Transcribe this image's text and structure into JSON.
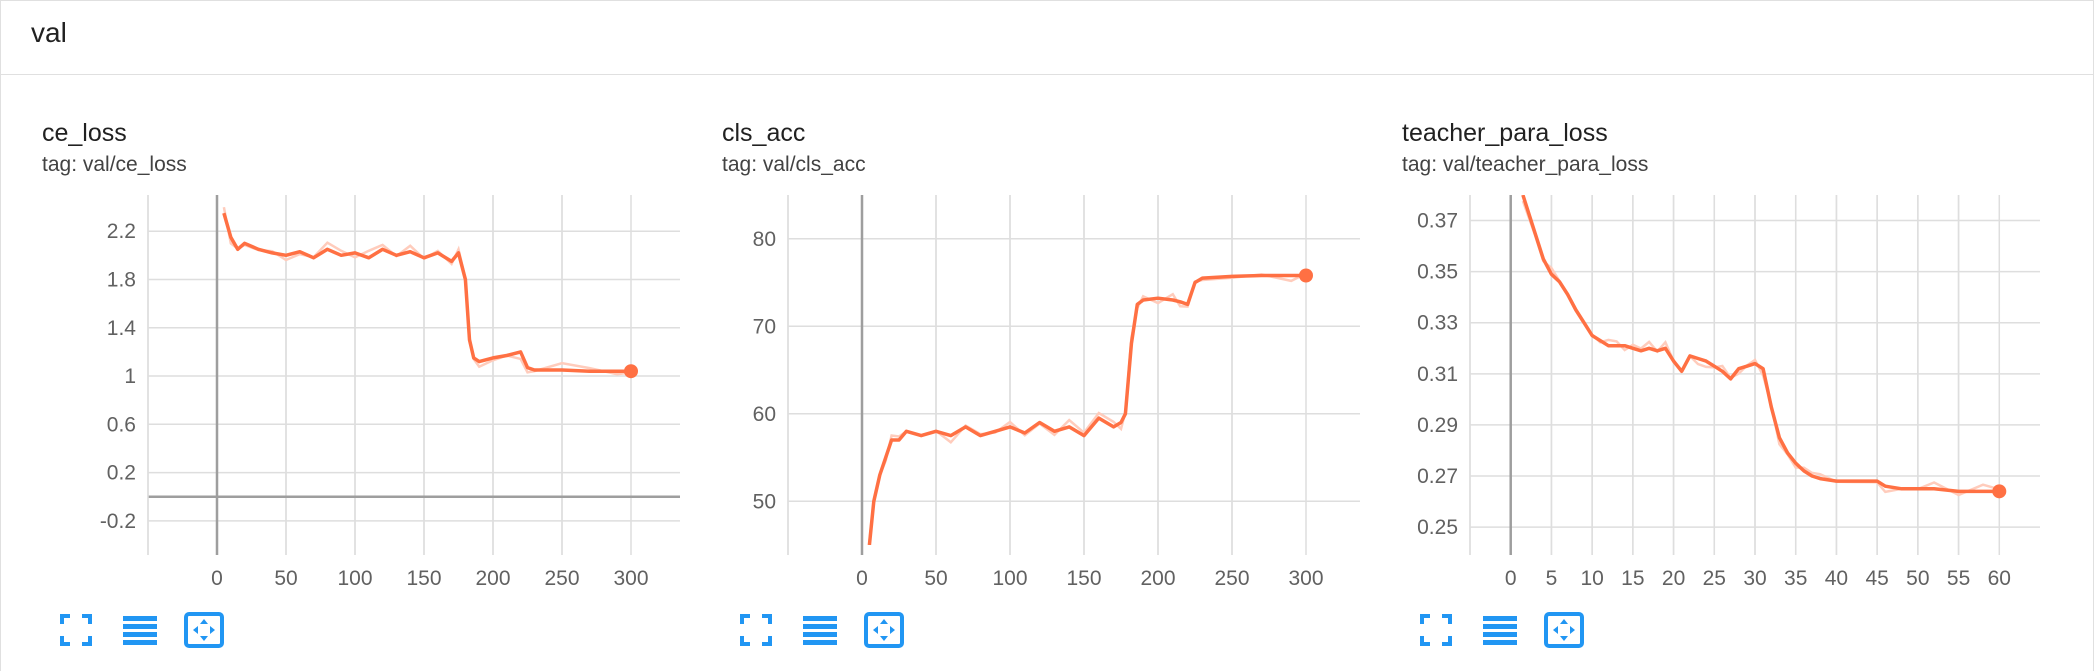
{
  "section": {
    "title": "val"
  },
  "colors": {
    "series": "#ff7043",
    "series_raw": "#ffccbc",
    "grid": "#dedede",
    "axis": "#9e9e9e",
    "tool": "#2196f3"
  },
  "toolbar": {
    "icons": [
      "fullscreen-icon",
      "list-icon",
      "fit-domain-icon"
    ]
  },
  "charts": [
    {
      "title": "ce_loss",
      "tag": "tag: val/ce_loss"
    },
    {
      "title": "cls_acc",
      "tag": "tag: val/cls_acc"
    },
    {
      "title": "teacher_para_loss",
      "tag": "tag: val/teacher_para_loss"
    }
  ],
  "chart_data": [
    {
      "type": "line",
      "xlim": [
        -50,
        350
      ],
      "ylim": [
        -0.4,
        2.5
      ],
      "xticks": [
        0,
        50,
        100,
        150,
        200,
        250,
        300
      ],
      "yticks": [
        2.2,
        1.8,
        1.4,
        1,
        0.6,
        0.2,
        -0.2
      ],
      "ytick_labels": [
        "2.2",
        "1.8",
        "1.4",
        "1",
        "0.6",
        "0.2",
        "-0.2"
      ],
      "grid": true,
      "series": [
        {
          "x": [
            5,
            10,
            15,
            20,
            30,
            40,
            50,
            60,
            70,
            80,
            90,
            100,
            110,
            120,
            130,
            140,
            150,
            160,
            170,
            175,
            180,
            183,
            186,
            190,
            200,
            210,
            220,
            225,
            230,
            250,
            270,
            290,
            300
          ],
          "y": [
            2.35,
            2.15,
            2.05,
            2.1,
            2.05,
            2.02,
            2.0,
            2.03,
            1.98,
            2.05,
            2.0,
            2.02,
            1.98,
            2.05,
            2.0,
            2.03,
            1.98,
            2.02,
            1.95,
            2.02,
            1.8,
            1.3,
            1.15,
            1.12,
            1.15,
            1.17,
            1.2,
            1.07,
            1.05,
            1.05,
            1.04,
            1.04,
            1.04
          ]
        }
      ]
    },
    {
      "type": "line",
      "xlim": [
        -50,
        350
      ],
      "ylim": [
        45,
        85
      ],
      "xticks": [
        0,
        50,
        100,
        150,
        200,
        250,
        300
      ],
      "yticks": [
        80,
        70,
        60,
        50
      ],
      "ytick_labels": [
        "80",
        "70",
        "60",
        "50"
      ],
      "grid": true,
      "series": [
        {
          "x": [
            5,
            8,
            12,
            16,
            20,
            25,
            30,
            40,
            50,
            60,
            70,
            80,
            90,
            100,
            110,
            120,
            130,
            140,
            150,
            160,
            170,
            175,
            178,
            182,
            186,
            190,
            200,
            210,
            215,
            220,
            225,
            230,
            250,
            270,
            290,
            300
          ],
          "y": [
            45,
            50,
            53,
            55,
            57,
            57,
            58,
            57.5,
            58,
            57.5,
            58.5,
            57.5,
            58,
            58.5,
            57.8,
            59,
            58,
            58.5,
            57.5,
            59.5,
            58.5,
            59,
            60,
            68,
            72.5,
            73,
            73.2,
            73,
            72.8,
            72.5,
            75,
            75.5,
            75.7,
            75.8,
            75.8,
            75.8
          ]
        }
      ]
    },
    {
      "type": "line",
      "xlim": [
        -5,
        65
      ],
      "ylim": [
        0.243,
        0.38
      ],
      "xticks": [
        0,
        5,
        10,
        15,
        20,
        25,
        30,
        35,
        40,
        45,
        50,
        55,
        60
      ],
      "yticks": [
        0.37,
        0.35,
        0.33,
        0.31,
        0.29,
        0.27,
        0.25
      ],
      "ytick_labels": [
        "0.37",
        "0.35",
        "0.33",
        "0.31",
        "0.29",
        "0.27",
        "0.25"
      ],
      "grid": true,
      "series": [
        {
          "x": [
            1.5,
            3,
            4,
            5,
            6,
            7,
            8,
            9,
            10,
            11,
            12,
            13,
            14,
            15,
            16,
            17,
            18,
            19,
            20,
            21,
            22,
            23,
            24,
            25,
            26,
            27,
            28,
            29,
            30,
            31,
            32,
            33,
            34,
            35,
            36,
            37,
            38,
            40,
            42,
            44,
            45,
            46,
            48,
            50,
            52,
            55,
            58,
            60
          ],
          "y": [
            0.38,
            0.365,
            0.355,
            0.349,
            0.346,
            0.341,
            0.335,
            0.33,
            0.325,
            0.323,
            0.321,
            0.321,
            0.321,
            0.32,
            0.319,
            0.32,
            0.319,
            0.32,
            0.315,
            0.311,
            0.317,
            0.316,
            0.315,
            0.313,
            0.311,
            0.308,
            0.312,
            0.313,
            0.314,
            0.312,
            0.297,
            0.285,
            0.279,
            0.275,
            0.272,
            0.27,
            0.269,
            0.268,
            0.268,
            0.268,
            0.268,
            0.266,
            0.265,
            0.265,
            0.265,
            0.264,
            0.264,
            0.264
          ]
        }
      ]
    }
  ]
}
